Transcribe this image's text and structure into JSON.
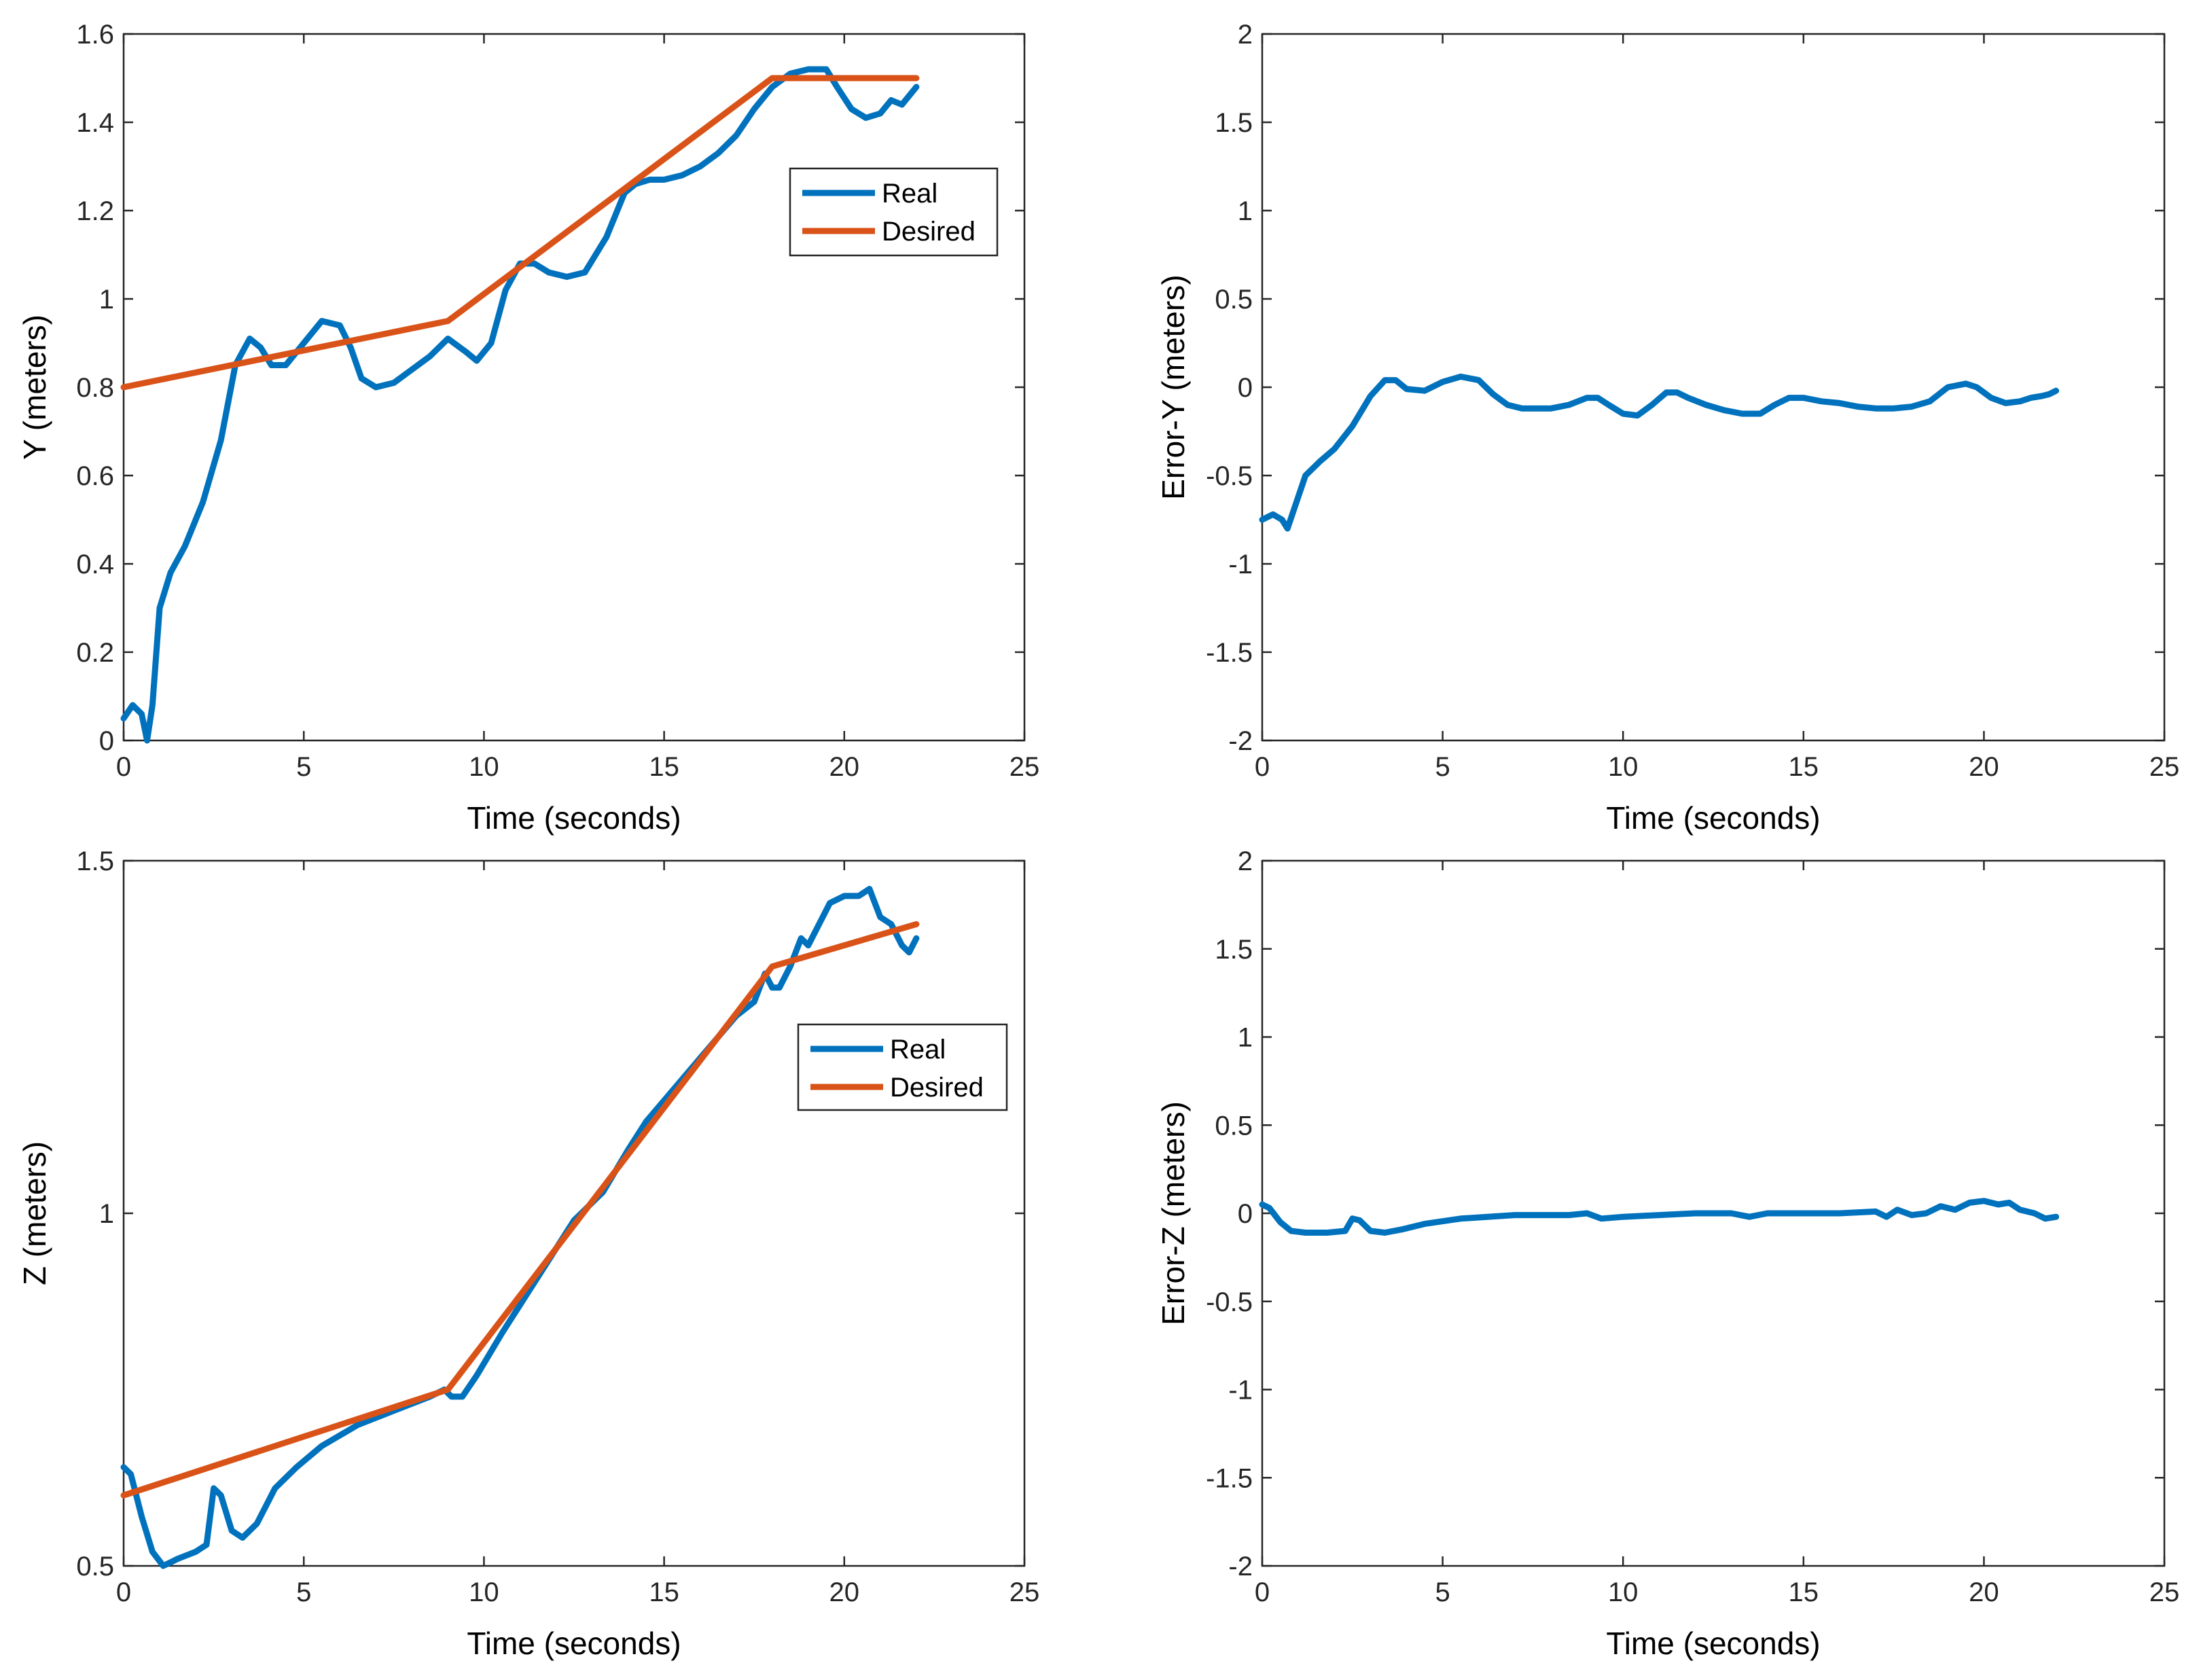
{
  "chart_data": [
    {
      "type": "line",
      "xlabel": "Time (seconds)",
      "ylabel": "Y (meters)",
      "xlim": [
        0,
        25
      ],
      "ylim": [
        0,
        1.6
      ],
      "xticks": [
        "0",
        "5",
        "10",
        "15",
        "20",
        "25"
      ],
      "yticks": [
        "0",
        "0.2",
        "0.4",
        "0.6",
        "0.8",
        "1",
        "1.2",
        "1.4",
        "1.6"
      ],
      "legend": "inside-upper-right",
      "series": [
        {
          "name": "Real",
          "color": "#0072BD",
          "x": [
            0,
            0.25,
            0.5,
            0.65,
            0.8,
            1.0,
            1.3,
            1.7,
            2.2,
            2.7,
            3.1,
            3.5,
            3.8,
            4.1,
            4.5,
            5.0,
            5.5,
            6.0,
            6.3,
            6.6,
            7.0,
            7.5,
            8.0,
            8.5,
            9.0,
            9.5,
            9.8,
            10.2,
            10.6,
            11.0,
            11.4,
            11.8,
            12.3,
            12.8,
            13.4,
            13.9,
            14.2,
            14.6,
            15.0,
            15.5,
            16.0,
            16.5,
            17.0,
            17.5,
            18.0,
            18.5,
            19.0,
            19.5,
            19.8,
            20.2,
            20.6,
            21.0,
            21.3,
            21.6,
            21.8,
            22.0
          ],
          "values": [
            0.05,
            0.08,
            0.06,
            0.0,
            0.08,
            0.3,
            0.38,
            0.44,
            0.54,
            0.68,
            0.85,
            0.91,
            0.89,
            0.85,
            0.85,
            0.9,
            0.95,
            0.94,
            0.89,
            0.82,
            0.8,
            0.81,
            0.84,
            0.87,
            0.91,
            0.88,
            0.86,
            0.9,
            1.02,
            1.08,
            1.08,
            1.06,
            1.05,
            1.06,
            1.14,
            1.24,
            1.26,
            1.27,
            1.27,
            1.28,
            1.3,
            1.33,
            1.37,
            1.43,
            1.48,
            1.51,
            1.52,
            1.52,
            1.48,
            1.43,
            1.41,
            1.42,
            1.45,
            1.44,
            1.46,
            1.48
          ]
        },
        {
          "name": "Desired",
          "color": "#D95319",
          "x": [
            0,
            9,
            18,
            22
          ],
          "values": [
            0.8,
            0.95,
            1.5,
            1.5
          ]
        }
      ]
    },
    {
      "type": "line",
      "xlabel": "Time (seconds)",
      "ylabel": "Error-Y (meters)",
      "xlim": [
        0,
        25
      ],
      "ylim": [
        -2,
        2
      ],
      "xticks": [
        "0",
        "5",
        "10",
        "15",
        "20",
        "25"
      ],
      "yticks": [
        "-2",
        "-1.5",
        "-1",
        "-0.5",
        "0",
        "0.5",
        "1",
        "1.5",
        "2"
      ],
      "series": [
        {
          "color": "#0072BD",
          "x": [
            0,
            0.3,
            0.55,
            0.7,
            0.9,
            1.2,
            1.6,
            2.0,
            2.5,
            3.0,
            3.4,
            3.7,
            4.0,
            4.5,
            5.0,
            5.5,
            6.0,
            6.4,
            6.8,
            7.2,
            7.6,
            8.0,
            8.5,
            9.0,
            9.3,
            9.6,
            10.0,
            10.4,
            10.8,
            11.2,
            11.5,
            11.8,
            12.3,
            12.8,
            13.3,
            13.8,
            14.2,
            14.6,
            15.0,
            15.5,
            16.0,
            16.5,
            17.0,
            17.5,
            18.0,
            18.5,
            19.0,
            19.5,
            19.8,
            20.2,
            20.6,
            21.0,
            21.3,
            21.6,
            21.8,
            22.0
          ],
          "values": [
            -0.75,
            -0.72,
            -0.75,
            -0.8,
            -0.68,
            -0.5,
            -0.42,
            -0.35,
            -0.22,
            -0.05,
            0.04,
            0.04,
            -0.01,
            -0.02,
            0.03,
            0.06,
            0.04,
            -0.04,
            -0.1,
            -0.12,
            -0.12,
            -0.12,
            -0.1,
            -0.06,
            -0.06,
            -0.1,
            -0.15,
            -0.16,
            -0.1,
            -0.03,
            -0.03,
            -0.06,
            -0.1,
            -0.13,
            -0.15,
            -0.15,
            -0.1,
            -0.06,
            -0.06,
            -0.08,
            -0.09,
            -0.11,
            -0.12,
            -0.12,
            -0.11,
            -0.08,
            0.0,
            0.02,
            0.0,
            -0.06,
            -0.09,
            -0.08,
            -0.06,
            -0.05,
            -0.04,
            -0.02
          ]
        }
      ]
    },
    {
      "type": "line",
      "xlabel": "Time (seconds)",
      "ylabel": "Z (meters)",
      "xlim": [
        0,
        25
      ],
      "ylim": [
        0.5,
        1.5
      ],
      "xticks": [
        "0",
        "5",
        "10",
        "15",
        "20",
        "25"
      ],
      "yticks": [
        "0.5",
        "1",
        "1.5"
      ],
      "legend": "inside-upper-right",
      "series": [
        {
          "name": "Real",
          "color": "#0072BD",
          "x": [
            0,
            0.2,
            0.5,
            0.8,
            1.1,
            1.5,
            2.0,
            2.3,
            2.5,
            2.7,
            3.0,
            3.3,
            3.7,
            4.2,
            4.8,
            5.5,
            6.5,
            7.5,
            8.5,
            8.9,
            9.1,
            9.4,
            9.8,
            10.5,
            11.5,
            12.5,
            13.3,
            14.0,
            14.5,
            15.0,
            16.0,
            17.0,
            17.5,
            17.8,
            18.0,
            18.2,
            18.5,
            18.8,
            19.0,
            19.3,
            19.6,
            20.0,
            20.4,
            20.7,
            21.0,
            21.3,
            21.6,
            21.8,
            22.0
          ],
          "values": [
            0.64,
            0.63,
            0.57,
            0.52,
            0.5,
            0.51,
            0.52,
            0.53,
            0.61,
            0.6,
            0.55,
            0.54,
            0.56,
            0.61,
            0.64,
            0.67,
            0.7,
            0.72,
            0.74,
            0.75,
            0.74,
            0.74,
            0.77,
            0.83,
            0.91,
            0.99,
            1.03,
            1.09,
            1.13,
            1.16,
            1.22,
            1.28,
            1.3,
            1.34,
            1.32,
            1.32,
            1.35,
            1.39,
            1.38,
            1.41,
            1.44,
            1.45,
            1.45,
            1.46,
            1.42,
            1.41,
            1.38,
            1.37,
            1.39
          ]
        },
        {
          "name": "Desired",
          "color": "#D95319",
          "x": [
            0,
            9,
            18,
            22
          ],
          "values": [
            0.6,
            0.75,
            1.35,
            1.41
          ]
        }
      ]
    },
    {
      "type": "line",
      "xlabel": "Time (seconds)",
      "ylabel": "Error-Z (meters)",
      "xlim": [
        0,
        25
      ],
      "ylim": [
        -2,
        2
      ],
      "xticks": [
        "0",
        "5",
        "10",
        "15",
        "20",
        "25"
      ],
      "yticks": [
        "-2",
        "-1.5",
        "-1",
        "-0.5",
        "0",
        "0.5",
        "1",
        "1.5",
        "2"
      ],
      "series": [
        {
          "color": "#0072BD",
          "x": [
            0,
            0.2,
            0.5,
            0.8,
            1.2,
            1.8,
            2.3,
            2.5,
            2.7,
            3.0,
            3.4,
            3.9,
            4.5,
            5.5,
            7.0,
            8.5,
            9.0,
            9.4,
            10.0,
            11.0,
            12.0,
            13.0,
            13.5,
            14.0,
            14.5,
            15.0,
            16.0,
            17.0,
            17.3,
            17.6,
            18.0,
            18.4,
            18.8,
            19.2,
            19.6,
            20.0,
            20.4,
            20.7,
            21.0,
            21.4,
            21.7,
            22.0
          ],
          "values": [
            0.05,
            0.03,
            -0.05,
            -0.1,
            -0.11,
            -0.11,
            -0.1,
            -0.03,
            -0.04,
            -0.1,
            -0.11,
            -0.09,
            -0.06,
            -0.03,
            -0.01,
            -0.01,
            0.0,
            -0.03,
            -0.02,
            -0.01,
            0.0,
            0.0,
            -0.02,
            0.0,
            0.0,
            0.0,
            0.0,
            0.01,
            -0.02,
            0.02,
            -0.01,
            0.0,
            0.04,
            0.02,
            0.06,
            0.07,
            0.05,
            0.06,
            0.02,
            0.0,
            -0.03,
            -0.02
          ]
        }
      ]
    }
  ]
}
